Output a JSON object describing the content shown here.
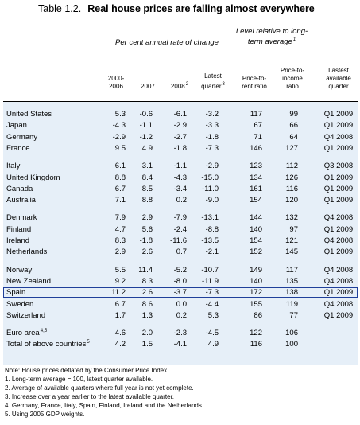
{
  "header": {
    "label": "Table 1.2.",
    "title": "Real house prices are falling almost everywhere"
  },
  "group_headers": [
    {
      "text": "Per cent annual rate of change"
    },
    {
      "text": "Level relative to long-term average",
      "sup": "1"
    }
  ],
  "columns": [
    {
      "text": "2000-2006"
    },
    {
      "text": "2007"
    },
    {
      "text": "2008",
      "sup": "2"
    },
    {
      "text": "Latest quarter",
      "sup": "3"
    },
    {
      "text": "Price-to-rent ratio"
    },
    {
      "text": "Price-to-income ratio"
    },
    {
      "text": "Lastest available quarter"
    }
  ],
  "table": {
    "groups": [
      {
        "rows": [
          {
            "country": "United States",
            "cells": [
              "5.3",
              "-0.6",
              "-6.1",
              "-3.2",
              "117",
              "99",
              "Q1 2009"
            ]
          },
          {
            "country": "Japan",
            "cells": [
              "-4.3",
              "-1.1",
              "-2.9",
              "-3.3",
              "67",
              "66",
              "Q1 2009"
            ]
          },
          {
            "country": "Germany",
            "cells": [
              "-2.9",
              "-1.2",
              "-2.7",
              "-1.8",
              "71",
              "64",
              "Q4 2008"
            ]
          },
          {
            "country": "France",
            "cells": [
              "9.5",
              "4.9",
              "-1.8",
              "-7.3",
              "146",
              "127",
              "Q1 2009"
            ]
          }
        ]
      },
      {
        "rows": [
          {
            "country": "Italy",
            "cells": [
              "6.1",
              "3.1",
              "-1.1",
              "-2.9",
              "123",
              "112",
              "Q3 2008"
            ]
          },
          {
            "country": "United Kingdom",
            "cells": [
              "8.8",
              "8.4",
              "-4.3",
              "-15.0",
              "134",
              "126",
              "Q1 2009"
            ]
          },
          {
            "country": "Canada",
            "cells": [
              "6.7",
              "8.5",
              "-3.4",
              "-11.0",
              "161",
              "116",
              "Q1 2009"
            ]
          },
          {
            "country": "Australia",
            "cells": [
              "7.1",
              "8.8",
              "0.2",
              "-9.0",
              "154",
              "120",
              "Q1 2009"
            ]
          }
        ]
      },
      {
        "rows": [
          {
            "country": "Denmark",
            "cells": [
              "7.9",
              "2.9",
              "-7.9",
              "-13.1",
              "144",
              "132",
              "Q4 2008"
            ]
          },
          {
            "country": "Finland",
            "cells": [
              "4.7",
              "5.6",
              "-2.4",
              "-8.8",
              "140",
              "97",
              "Q1 2009"
            ]
          },
          {
            "country": "Ireland",
            "cells": [
              "8.3",
              "-1.8",
              "-11.6",
              "-13.5",
              "154",
              "121",
              "Q4 2008"
            ]
          },
          {
            "country": "Netherlands",
            "cells": [
              "2.9",
              "2.6",
              "0.7",
              "-2.1",
              "152",
              "145",
              "Q1 2009"
            ]
          }
        ]
      },
      {
        "rows": [
          {
            "country": "Norway",
            "cells": [
              "5.5",
              "11.4",
              "-5.2",
              "-10.7",
              "149",
              "117",
              "Q4 2008"
            ]
          },
          {
            "country": "New Zealand",
            "cells": [
              "9.2",
              "8.3",
              "-8.0",
              "-11.9",
              "140",
              "135",
              "Q4 2008"
            ]
          },
          {
            "country": "Spain",
            "highlight": true,
            "cells": [
              "11.2",
              "2.6",
              "-3.7",
              "-7.3",
              "172",
              "138",
              "Q1 2009"
            ]
          },
          {
            "country": "Sweden",
            "cells": [
              "6.7",
              "8.6",
              "0.0",
              "-4.4",
              "155",
              "119",
              "Q4 2008"
            ]
          },
          {
            "country": "Switzerland",
            "cells": [
              "1.7",
              "1.3",
              "0.2",
              "5.3",
              "86",
              "77",
              "Q1 2009"
            ]
          }
        ]
      },
      {
        "rows": [
          {
            "country": "Euro area",
            "sup": "4,5",
            "cells": [
              "4.6",
              "2.0",
              "-2.3",
              "-4.5",
              "122",
              "106"
            ]
          },
          {
            "country": "Total of above countries",
            "sup": "5",
            "cells": [
              "4.2",
              "1.5",
              "-4.1",
              "4.9",
              "116",
              "100"
            ]
          }
        ]
      }
    ]
  },
  "notes": [
    "Note: House prices deflated by the Consumer Price Index.",
    "1. Long-term average = 100, latest quarter available.",
    "2. Average of available quarters where full year is not yet complete.",
    "3. Increase over a year earlier to the latest available quarter.",
    "4. Germany, France, Italy, Spain, Finland, Ireland and the Netherlands.",
    "5. Using 2005 GDP weights."
  ]
}
